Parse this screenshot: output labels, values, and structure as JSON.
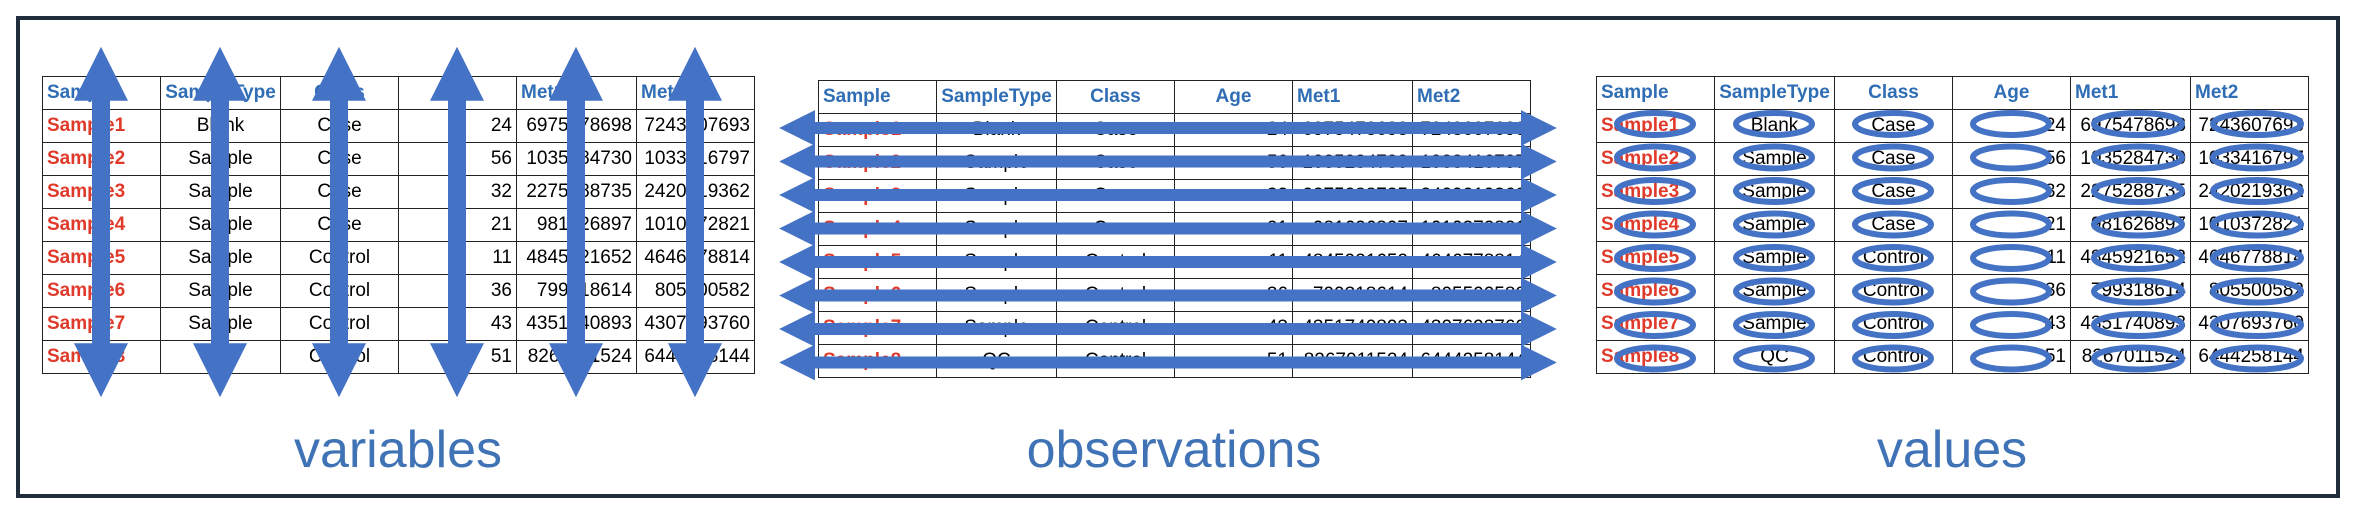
{
  "columns": [
    "Sample",
    "SampleType",
    "Class",
    "Age",
    "Met1",
    "Met2"
  ],
  "rows": [
    [
      "Sample1",
      "Blank",
      "Case",
      "24",
      "6975478698",
      "7243607693"
    ],
    [
      "Sample2",
      "Sample",
      "Case",
      "56",
      "1035284730",
      "1033416797"
    ],
    [
      "Sample3",
      "Sample",
      "Case",
      "32",
      "2275288735",
      "2420219362"
    ],
    [
      "Sample4",
      "Sample",
      "Case",
      "21",
      "981626897",
      "1010372821"
    ],
    [
      "Sample5",
      "Sample",
      "Control",
      "11",
      "4845921652",
      "4646778814"
    ],
    [
      "Sample6",
      "Sample",
      "Control",
      "36",
      "799318614",
      "805500582"
    ],
    [
      "Sample7",
      "Sample",
      "Control",
      "43",
      "4351740893",
      "4307693760"
    ],
    [
      "Sample8",
      "QC",
      "Control",
      "51",
      "8267011524",
      "6444258144"
    ]
  ],
  "captions": {
    "variables": "variables",
    "observations": "observations",
    "values": "values"
  },
  "colors": {
    "header_text": "#2f6db5",
    "sample_text": "#e03a2a",
    "arrow": "#4472c4",
    "caption": "#3f73b6",
    "frame": "#1f2d3d"
  }
}
